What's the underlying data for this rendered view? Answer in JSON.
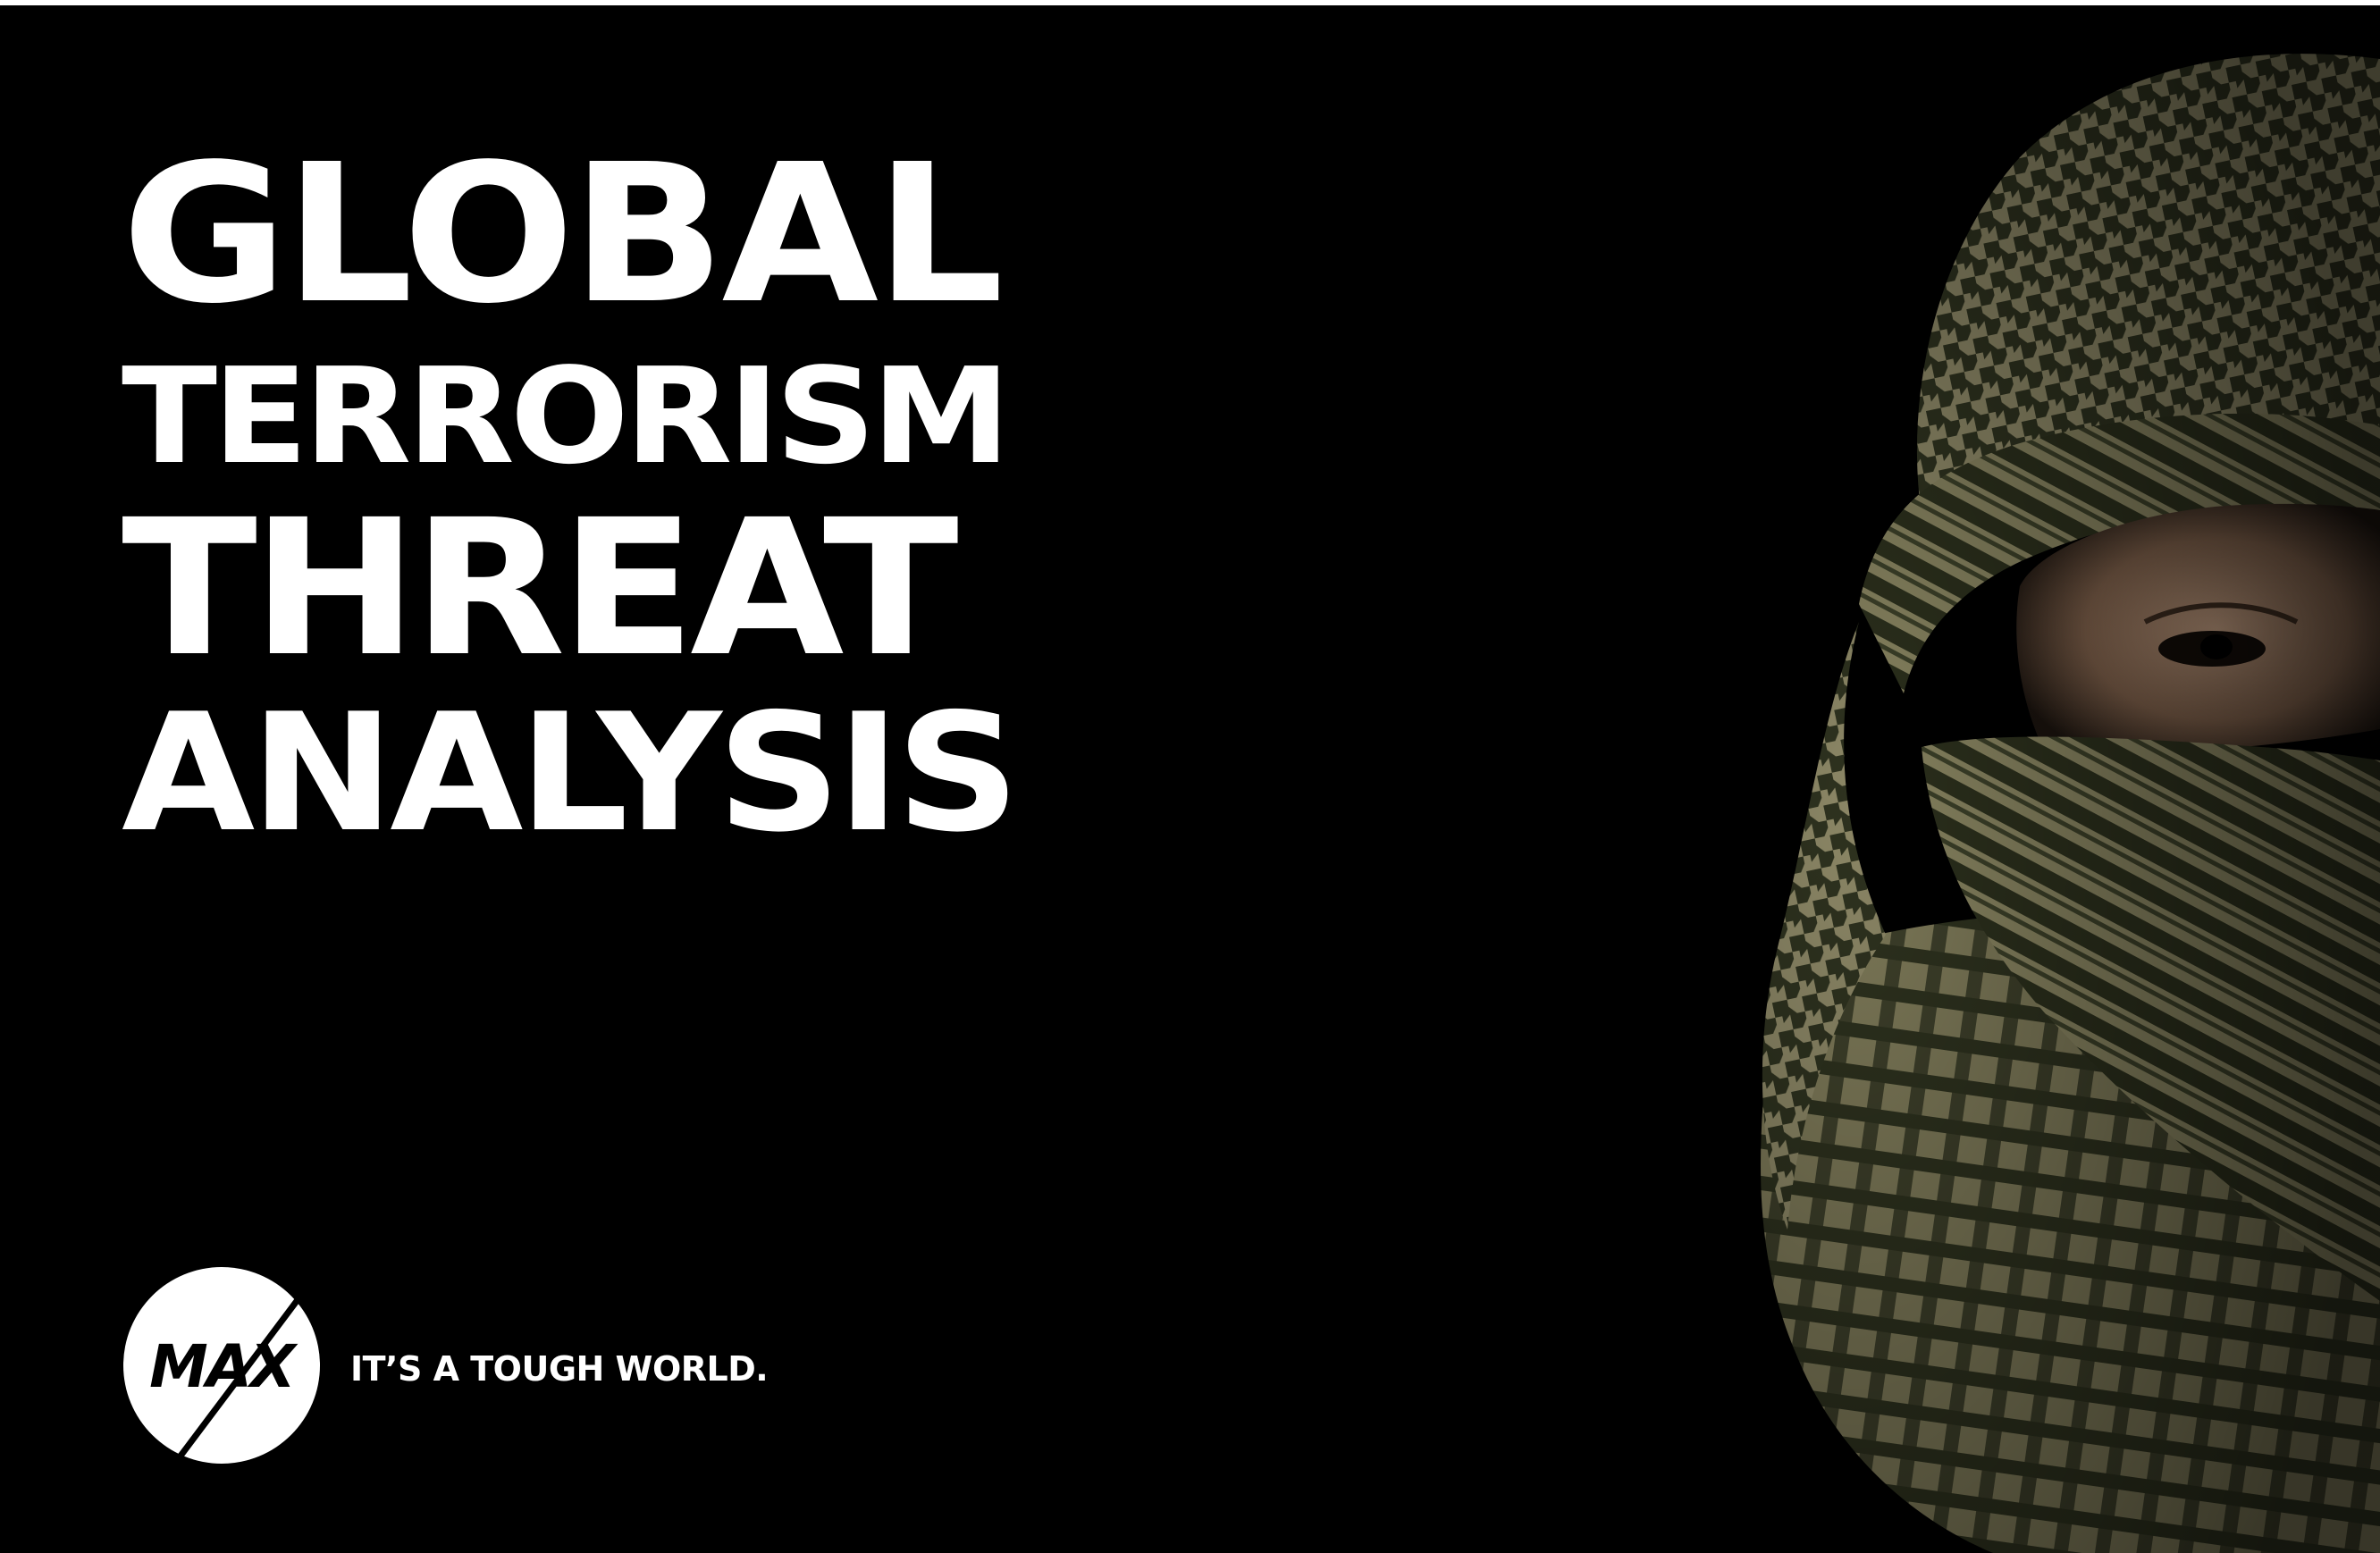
{
  "headline": {
    "line1": "GLOBAL",
    "line2": "TERRORISM",
    "line3": "THREAT",
    "line4": "ANALYSIS"
  },
  "brand": {
    "logo_text": "MAX",
    "tagline": "IT’S A TOUGH WORLD."
  },
  "image": {
    "subject": "person-in-keffiyeh-icon"
  },
  "colors": {
    "background": "#000000",
    "text": "#ffffff",
    "scarf_dark": "#2f3320",
    "scarf_light": "#8f8a68"
  }
}
